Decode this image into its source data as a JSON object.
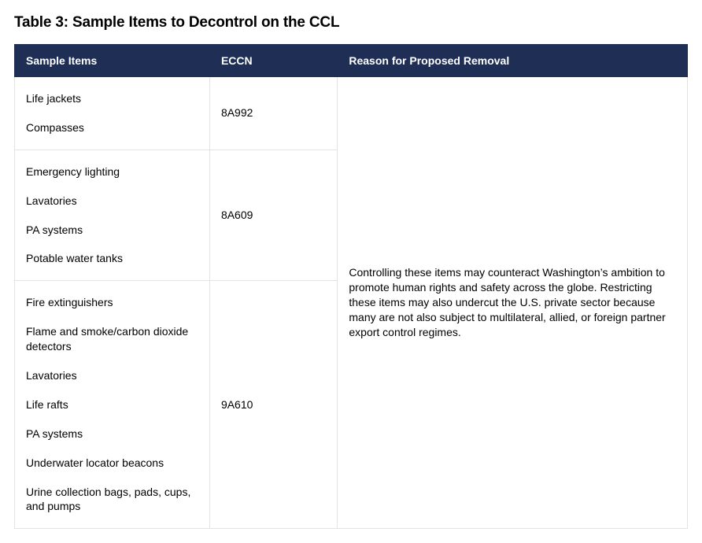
{
  "title": "Table 3: Sample Items to Decontrol on the CCL",
  "table": {
    "columns": [
      "Sample Items",
      "ECCN",
      "Reason for Proposed Removal"
    ],
    "header_bg": "#1f2e55",
    "header_fg": "#ffffff",
    "border_color": "#e3e3e3",
    "background_color": "#ffffff",
    "font_family": "Helvetica Neue",
    "title_fontsize": 19,
    "header_fontsize": 14,
    "cell_fontsize": 14,
    "col_widths_pct": [
      29,
      19,
      52
    ],
    "groups": [
      {
        "eccn": "8A992",
        "items": [
          "Life jackets",
          "Compasses"
        ]
      },
      {
        "eccn": "8A609",
        "items": [
          "Emergency lighting",
          "Lavatories",
          "PA systems",
          "Potable water tanks"
        ]
      },
      {
        "eccn": "9A610",
        "items": [
          "Fire extinguishers",
          "Flame and smoke/carbon dioxide detectors",
          "Lavatories",
          "Life rafts",
          "PA systems",
          "Underwater locator beacons",
          "Urine collection bags, pads, cups, and pumps"
        ]
      }
    ],
    "reason": "Controlling these items may counteract Washington’s ambition to promote human rights and safety across the globe. Restricting these items may also undercut the U.S. private sector because many are not also subject to multilateral, allied, or foreign partner export control regimes."
  }
}
